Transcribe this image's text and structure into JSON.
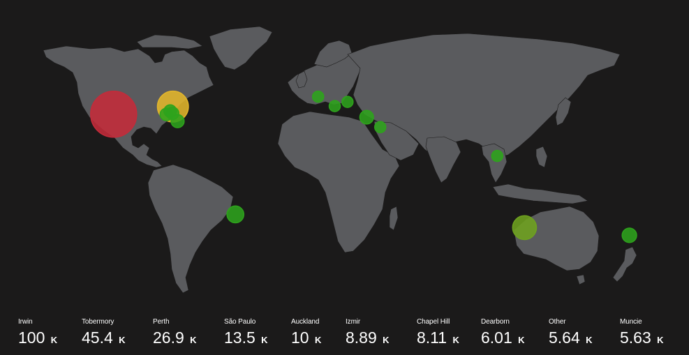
{
  "map": {
    "colors": {
      "background": "#1b1a1a",
      "land": "#5a5b5e",
      "high": "#c42b3a",
      "medium": "#e3b62b",
      "low": "#2ea31c",
      "low_alt": "#6ea21f"
    },
    "locations": [
      {
        "name": "Irwin",
        "value": 100,
        "unit": "K",
        "level": "high",
        "lat": 40.3,
        "lon": -115
      },
      {
        "name": "Tobermory",
        "value": 45.4,
        "unit": "K",
        "level": "medium",
        "lat": 45.2,
        "lon": -81.7
      },
      {
        "name": "Perth",
        "value": 26.9,
        "unit": "K",
        "level": "low_alt",
        "lat": -31.95,
        "lon": 115.86
      },
      {
        "name": "São Paulo",
        "value": 13.5,
        "unit": "K",
        "level": "low",
        "lat": -23.5,
        "lon": -46.6
      },
      {
        "name": "Auckland",
        "value": 10,
        "unit": "K",
        "level": "low",
        "lat": -36.85,
        "lon": 174.76
      },
      {
        "name": "Izmir",
        "value": 8.89,
        "unit": "K",
        "level": "low",
        "lat": 38.42,
        "lon": 27.14
      },
      {
        "name": "Chapel Hill",
        "value": 8.11,
        "unit": "K",
        "level": "low",
        "lat": 35.9,
        "lon": -79.05
      },
      {
        "name": "Dearborn",
        "value": 6.01,
        "unit": "K",
        "level": "low",
        "lat": 42.3,
        "lon": -83.2
      },
      {
        "name": "Other",
        "value": 5.64,
        "unit": "K",
        "level": "low",
        "lat": 40.9,
        "lon": -81.9
      },
      {
        "name": "Muncie",
        "value": 5.63,
        "unit": "K",
        "level": "low",
        "lat": 40.19,
        "lon": -85.39
      }
    ],
    "minor_points": [
      {
        "lat": 51.5,
        "lon": -0.1
      },
      {
        "lat": 45.5,
        "lon": 9.2
      },
      {
        "lat": 48.2,
        "lon": 16.4
      },
      {
        "lat": 32.1,
        "lon": 34.8
      },
      {
        "lat": 13.75,
        "lon": 100.5
      }
    ]
  }
}
